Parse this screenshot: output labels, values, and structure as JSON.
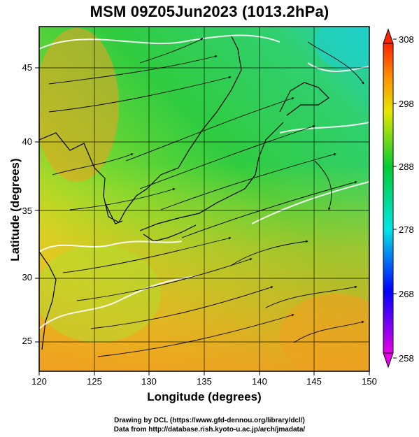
{
  "title": "MSM 09Z05Jun2023 (1013.2hPa)",
  "x_axis": {
    "label": "Longitude (degrees)",
    "range": [
      120,
      150
    ],
    "ticks": [
      "120",
      "125",
      "130",
      "135",
      "140",
      "145",
      "150"
    ]
  },
  "y_axis": {
    "label": "Latitude  (degrees)",
    "range": [
      22.5,
      47.6
    ],
    "ticks": [
      "25",
      "30",
      "35",
      "40",
      "45"
    ]
  },
  "colorbar": {
    "range": [
      258,
      308
    ],
    "ticks": [
      "258",
      "268",
      "278",
      "288",
      "298",
      "308"
    ],
    "colors": [
      "#e600e6",
      "#0000ff",
      "#00e6e6",
      "#00cc33",
      "#e6e600",
      "#ff8800",
      "#ff2200"
    ]
  },
  "credits": {
    "line1": "Drawing by DCL (https://www.gfd-dennou.org/library/dcl/)",
    "line2": "Data from http://database.rish.kyoto-u.ac.jp/arch/jmadata/"
  }
}
